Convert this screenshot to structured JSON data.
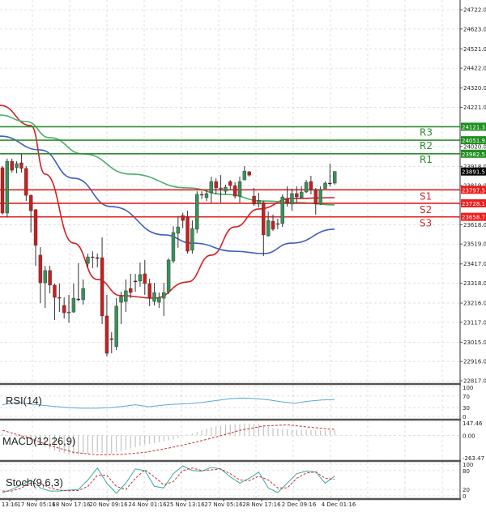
{
  "chart_data": {
    "type": "candlestick",
    "price_axis": {
      "ylim": [
        22817.0,
        24722.0
      ],
      "ticks": [
        "24722.0",
        "24623.0",
        "24521.0",
        "24422.0",
        "24320.0",
        "24221.0",
        "24020.0",
        "23918.0",
        "23819.0",
        "23618.0",
        "23519.0",
        "23417.0",
        "23318.0",
        "23216.0",
        "23117.0",
        "23015.0",
        "22916.0",
        "22817.0"
      ]
    },
    "time_axis": {
      "labels": [
        "13:16",
        "17 Nov 05:16",
        "18 Nov 17:16",
        "20 Nov 09:16",
        "24 Nov 01:16",
        "25 Nov 13:16",
        "27 Nov 05:16",
        "28 Nov 17:16",
        "2 Dec 09:16",
        "4 Dec 01:16"
      ]
    },
    "grid": true,
    "candles_ohlc": [
      [
        23911,
        23919,
        23670,
        23678
      ],
      [
        23678,
        23957,
        23657,
        23944
      ],
      [
        23944,
        23957,
        23886,
        23898
      ],
      [
        23911,
        23944,
        23882,
        23932
      ],
      [
        23936,
        23982,
        23886,
        23907
      ],
      [
        23907,
        23919,
        23740,
        23769
      ],
      [
        23769,
        23774,
        23578,
        23690
      ],
      [
        23695,
        23699,
        23407,
        23512
      ],
      [
        23462,
        23503,
        23216,
        23320
      ],
      [
        23320,
        23407,
        23191,
        23383
      ],
      [
        23383,
        23407,
        23266,
        23308
      ],
      [
        23308,
        23316,
        23129,
        23245
      ],
      [
        23245,
        23316,
        23170,
        23241
      ],
      [
        23204,
        23245,
        23137,
        23166
      ],
      [
        23166,
        23258,
        23116,
        23170
      ],
      [
        23170,
        23316,
        23166,
        23241
      ],
      [
        23237,
        23420,
        23224,
        23237
      ],
      [
        23233,
        23337,
        23208,
        23291
      ],
      [
        23420,
        23470,
        23399,
        23453
      ],
      [
        23453,
        23482,
        23395,
        23449
      ],
      [
        23449,
        23470,
        23399,
        23449
      ],
      [
        23449,
        23553,
        23108,
        23150
      ],
      [
        23150,
        23258,
        22942,
        22958
      ],
      [
        23033,
        23066,
        22958,
        23033
      ],
      [
        22992,
        23241,
        22975,
        23200
      ],
      [
        23220,
        23274,
        23108,
        23249
      ],
      [
        23224,
        23337,
        23170,
        23279
      ],
      [
        23291,
        23366,
        23241,
        23270
      ],
      [
        23329,
        23366,
        23274,
        23329
      ],
      [
        23329,
        23424,
        23300,
        23362
      ],
      [
        23366,
        23437,
        23258,
        23316
      ],
      [
        23316,
        23341,
        23200,
        23245
      ],
      [
        23224,
        23320,
        23204,
        23270
      ],
      [
        23220,
        23270,
        23191,
        23245
      ],
      [
        23241,
        23320,
        23150,
        23270
      ],
      [
        23274,
        23445,
        23262,
        23437
      ],
      [
        23432,
        23610,
        23420,
        23578
      ],
      [
        23574,
        23660,
        23500,
        23607
      ],
      [
        23665,
        23680,
        23600,
        23640
      ],
      [
        23657,
        23690,
        23470,
        23482
      ],
      [
        23487,
        23640,
        23470,
        23599
      ],
      [
        23595,
        23790,
        23575,
        23774
      ],
      [
        23774,
        23790,
        23750,
        23770
      ],
      [
        23757,
        23800,
        23740,
        23778
      ],
      [
        23782,
        23865,
        23732,
        23840
      ],
      [
        23840,
        23857,
        23774,
        23807
      ],
      [
        23803,
        23873,
        23732,
        23807
      ],
      [
        23790,
        23824,
        23774,
        23811
      ],
      [
        23840,
        23848,
        23799,
        23819
      ],
      [
        23819,
        23836,
        23753,
        23765
      ],
      [
        23765,
        23865,
        23732,
        23840
      ],
      [
        23848,
        23919,
        23848,
        23894
      ],
      [
        23890,
        23894,
        23865,
        23873
      ],
      [
        23765,
        23807,
        23715,
        23724
      ],
      [
        23724,
        23782,
        23707,
        23744
      ],
      [
        23732,
        23740,
        23457,
        23566
      ],
      [
        23561,
        23686,
        23557,
        23640
      ],
      [
        23636,
        23670,
        23586,
        23595
      ],
      [
        23620,
        23649,
        23595,
        23624
      ],
      [
        23624,
        23774,
        23607,
        23761
      ],
      [
        23753,
        23815,
        23711,
        23732
      ],
      [
        23724,
        23803,
        23690,
        23778
      ],
      [
        23778,
        23815,
        23732,
        23761
      ],
      [
        23757,
        23815,
        23753,
        23786
      ],
      [
        23786,
        23848,
        23782,
        23836
      ],
      [
        23840,
        23869,
        23774,
        23799
      ],
      [
        23799,
        23807,
        23670,
        23724
      ],
      [
        23724,
        23815,
        23720,
        23799
      ],
      [
        23803,
        23840,
        23803,
        23832
      ],
      [
        23832,
        23932,
        23815,
        23832
      ],
      [
        23832,
        23894,
        23824,
        23891
      ]
    ],
    "moving_averages": [
      {
        "color": "#d42020",
        "points": [
          [
            0,
            24231
          ],
          [
            6,
            24127
          ],
          [
            9,
            23878
          ],
          [
            15,
            23524
          ],
          [
            20,
            23337
          ],
          [
            25,
            23254
          ],
          [
            32,
            23241
          ],
          [
            39,
            23324
          ],
          [
            44,
            23462
          ],
          [
            49,
            23607
          ],
          [
            54,
            23699
          ],
          [
            61,
            23753
          ],
          [
            70,
            23757
          ]
        ]
      },
      {
        "color": "#3c5fc0",
        "points": [
          [
            0,
            24073
          ],
          [
            8,
            24002
          ],
          [
            15,
            23857
          ],
          [
            23,
            23711
          ],
          [
            34,
            23566
          ],
          [
            40,
            23524
          ],
          [
            49,
            23482
          ],
          [
            55,
            23470
          ],
          [
            61,
            23524
          ],
          [
            70,
            23595
          ]
        ]
      },
      {
        "color": "#4caf6a",
        "points": [
          [
            0,
            24181
          ],
          [
            5,
            24148
          ],
          [
            10,
            24065
          ],
          [
            17,
            23982
          ],
          [
            27,
            23878
          ],
          [
            39,
            23807
          ],
          [
            47,
            23774
          ],
          [
            55,
            23740
          ],
          [
            62,
            23732
          ],
          [
            70,
            23720
          ]
        ]
      }
    ],
    "levels": [
      {
        "name": "R3",
        "value": "24121.3",
        "type": "resistance"
      },
      {
        "name": "R2",
        "value": "24051.9",
        "type": "resistance"
      },
      {
        "name": "R1",
        "value": "23982.5",
        "type": "resistance"
      },
      {
        "name": "S1",
        "value": "23797.5",
        "type": "support"
      },
      {
        "name": "S2",
        "value": "23728.1",
        "type": "support"
      },
      {
        "name": "S3",
        "value": "23658.7",
        "type": "support"
      }
    ],
    "current_price": "23891.5",
    "colors": {
      "bull": "#3a8f5a",
      "bear": "#c81e1e",
      "resistance": "#2e8b2e",
      "support": "#e02020",
      "current": "#000000"
    },
    "rsi": {
      "label": "RSI(14)",
      "ticks": [
        "100",
        "70",
        "30",
        "0"
      ],
      "ylim": [
        0,
        100
      ],
      "values": [
        40,
        48,
        44,
        38,
        34,
        30,
        28,
        28,
        30,
        34,
        40,
        33,
        38,
        42,
        44,
        48,
        54,
        60,
        63,
        61,
        57,
        50,
        45,
        52,
        56,
        58
      ]
    },
    "macd": {
      "label": "MACD(12,26,9)",
      "ticks": [
        "147.46",
        "0.00",
        "-263.47"
      ],
      "ylim": [
        -263.47,
        147.46
      ],
      "histogram": [
        20,
        10,
        0,
        -10,
        -20,
        -40,
        -60,
        -80,
        -110,
        -140,
        -160,
        -180,
        -200,
        -210,
        -220,
        -225,
        -225,
        -220,
        -215,
        -205,
        -200,
        -210,
        -220,
        -215,
        -200,
        -185,
        -170,
        -155,
        -140,
        -125,
        -110,
        -100,
        -90,
        -80,
        -70,
        -60,
        -45,
        -30,
        -10,
        10,
        20,
        40,
        60,
        80,
        95,
        105,
        115,
        125,
        130,
        135,
        135,
        140,
        140,
        138,
        130,
        120,
        100,
        90,
        80,
        75,
        72,
        68,
        66,
        65,
        64,
        62,
        60,
        58,
        60,
        62,
        64
      ],
      "signal": [
        60,
        -20,
        -120,
        -200,
        -230,
        -225,
        -200,
        -150,
        -90,
        -20,
        60,
        110,
        125,
        95,
        70
      ]
    },
    "stoch": {
      "label": "Stoch(9,6,3)",
      "ticks": [
        "100",
        "80",
        "20",
        "0"
      ],
      "ylim": [
        0,
        100
      ],
      "k": [
        10,
        20,
        35,
        50,
        25,
        15,
        15,
        18,
        20,
        50,
        88,
        40,
        8,
        40,
        85,
        80,
        30,
        25,
        70,
        95,
        80,
        78,
        90,
        85,
        60,
        40,
        55,
        75,
        25,
        10,
        40,
        70,
        78,
        75,
        40,
        62
      ],
      "d": [
        15,
        15,
        25,
        40,
        40,
        25,
        18,
        16,
        17,
        30,
        65,
        65,
        30,
        20,
        55,
        82,
        60,
        35,
        45,
        80,
        88,
        80,
        82,
        85,
        70,
        50,
        48,
        62,
        50,
        25,
        25,
        55,
        72,
        76,
        55,
        52
      ]
    }
  }
}
